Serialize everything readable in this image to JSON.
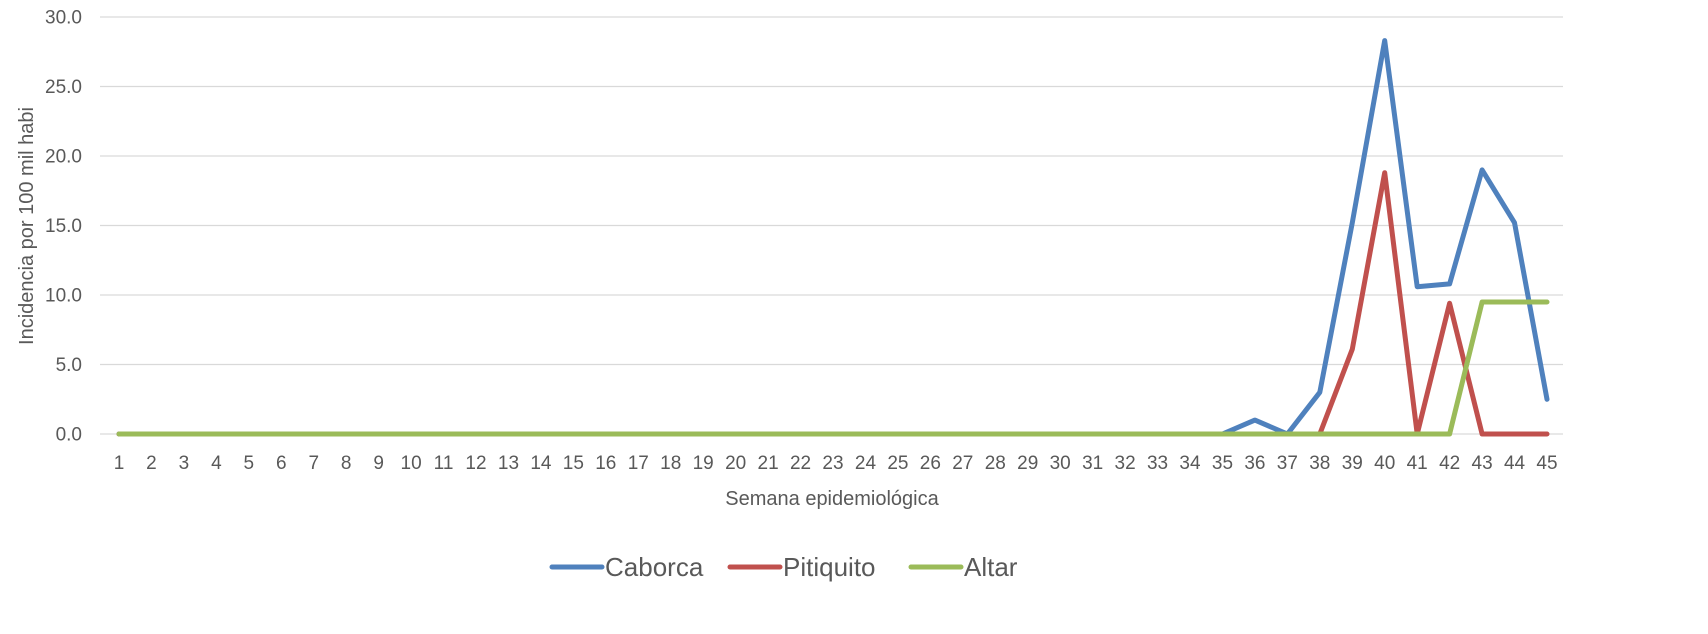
{
  "chart_data": {
    "type": "line",
    "title": "",
    "xlabel": "Semana epidemiológica",
    "ylabel": "Incidencia por 100  mil habi",
    "categories": [
      "1",
      "2",
      "3",
      "4",
      "5",
      "6",
      "7",
      "8",
      "9",
      "10",
      "11",
      "12",
      "13",
      "14",
      "15",
      "16",
      "17",
      "18",
      "19",
      "20",
      "21",
      "22",
      "23",
      "24",
      "25",
      "26",
      "27",
      "28",
      "29",
      "30",
      "31",
      "32",
      "33",
      "34",
      "35",
      "36",
      "37",
      "38",
      "39",
      "40",
      "41",
      "42",
      "43",
      "44",
      "45"
    ],
    "yticks": [
      "0.0",
      "5.0",
      "10.0",
      "15.0",
      "20.0",
      "25.0",
      "30.0"
    ],
    "ylim": [
      0,
      30
    ],
    "grid": true,
    "legend_position": "bottom",
    "series": [
      {
        "name": "Caborca",
        "color": "#4F81BD",
        "values": [
          0,
          0,
          0,
          0,
          0,
          0,
          0,
          0,
          0,
          0,
          0,
          0,
          0,
          0,
          0,
          0,
          0,
          0,
          0,
          0,
          0,
          0,
          0,
          0,
          0,
          0,
          0,
          0,
          0,
          0,
          0,
          0,
          0,
          0,
          0,
          1.0,
          0,
          3.0,
          15.2,
          28.3,
          10.6,
          10.8,
          19.0,
          15.2,
          2.5
        ]
      },
      {
        "name": "Pitiquito",
        "color": "#C0504D",
        "values": [
          0,
          0,
          0,
          0,
          0,
          0,
          0,
          0,
          0,
          0,
          0,
          0,
          0,
          0,
          0,
          0,
          0,
          0,
          0,
          0,
          0,
          0,
          0,
          0,
          0,
          0,
          0,
          0,
          0,
          0,
          0,
          0,
          0,
          0,
          0,
          0,
          0,
          0,
          6.1,
          18.8,
          0,
          9.4,
          0,
          0,
          0
        ]
      },
      {
        "name": "Altar",
        "color": "#9BBB59",
        "values": [
          0,
          0,
          0,
          0,
          0,
          0,
          0,
          0,
          0,
          0,
          0,
          0,
          0,
          0,
          0,
          0,
          0,
          0,
          0,
          0,
          0,
          0,
          0,
          0,
          0,
          0,
          0,
          0,
          0,
          0,
          0,
          0,
          0,
          0,
          0,
          0,
          0,
          0,
          0,
          0,
          0,
          0,
          9.5,
          9.5,
          9.5
        ]
      }
    ]
  }
}
